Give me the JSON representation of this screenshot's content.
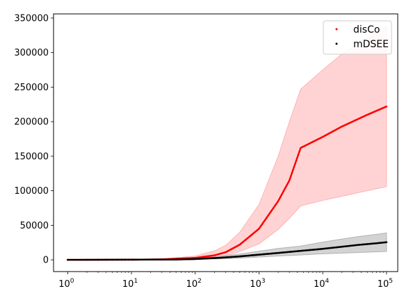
{
  "chart_data": {
    "type": "scatter",
    "title": "",
    "xlabel": "",
    "ylabel": "",
    "x_scale": "log",
    "xlim": [
      0.6,
      150000
    ],
    "ylim": [
      -17000,
      356000
    ],
    "grid": false,
    "legend_position": "upper right",
    "x_ticks": [
      {
        "value": 1,
        "base": "10",
        "exp": "0"
      },
      {
        "value": 10,
        "base": "10",
        "exp": "1"
      },
      {
        "value": 100,
        "base": "10",
        "exp": "2"
      },
      {
        "value": 1000,
        "base": "10",
        "exp": "3"
      },
      {
        "value": 10000,
        "base": "10",
        "exp": "4"
      },
      {
        "value": 100000,
        "base": "10",
        "exp": "5"
      }
    ],
    "y_ticks": [
      {
        "value": 0,
        "label": "0"
      },
      {
        "value": 50000,
        "label": "50000"
      },
      {
        "value": 100000,
        "label": "100000"
      },
      {
        "value": 150000,
        "label": "150000"
      },
      {
        "value": 200000,
        "label": "200000"
      },
      {
        "value": 250000,
        "label": "250000"
      },
      {
        "value": 300000,
        "label": "300000"
      },
      {
        "value": 350000,
        "label": "350000"
      }
    ],
    "series": [
      {
        "name": "disCo",
        "color": "#ff0000",
        "band_color": "#ff8080",
        "x": [
          1,
          10,
          30,
          100,
          200,
          300,
          500,
          1000,
          2000,
          3000,
          4500,
          10000,
          20000,
          50000,
          100000
        ],
        "mean": [
          0,
          150,
          700,
          2800,
          6500,
          11000,
          22000,
          45000,
          85000,
          115000,
          162000,
          178000,
          193000,
          210000,
          222000
        ],
        "lower": [
          0,
          100,
          400,
          1600,
          3600,
          6000,
          12000,
          23000,
          44000,
          60000,
          78000,
          86000,
          92000,
          100000,
          106000
        ],
        "upper": [
          0,
          300,
          1200,
          5500,
          13000,
          21000,
          40000,
          80000,
          150000,
          200000,
          247000,
          275000,
          298000,
          320000,
          337000
        ]
      },
      {
        "name": "mDSEE",
        "color": "#000000",
        "band_color": "#808080",
        "x": [
          1,
          50,
          100,
          250,
          500,
          1000,
          2000,
          4500,
          9000,
          18000,
          35000,
          70000,
          100000
        ],
        "mean": [
          0,
          500,
          1200,
          3000,
          5000,
          7500,
          10000,
          13000,
          15500,
          18500,
          21500,
          24000,
          25500
        ],
        "lower": [
          0,
          300,
          600,
          1500,
          2500,
          4000,
          5500,
          7000,
          8500,
          9500,
          10500,
          11500,
          12000
        ],
        "upper": [
          0,
          800,
          2200,
          5000,
          8500,
          12500,
          16500,
          20000,
          25000,
          29500,
          33500,
          37000,
          39000
        ]
      }
    ]
  }
}
